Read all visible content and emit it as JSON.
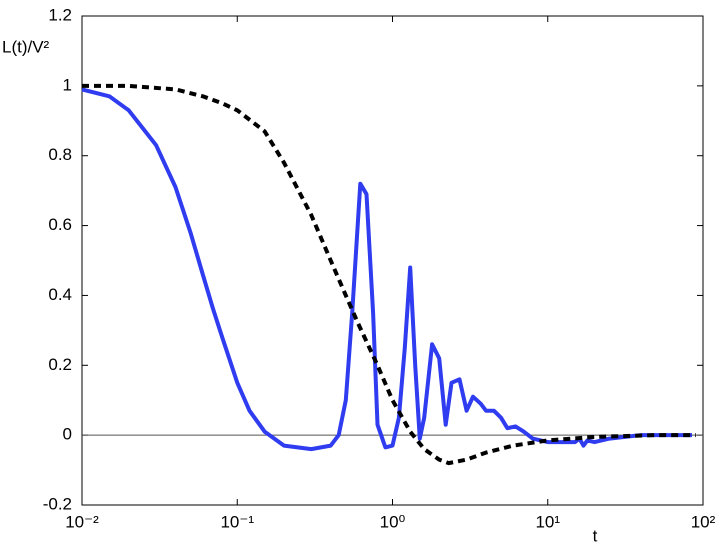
{
  "chart_data": {
    "type": "line",
    "xlabel": "t",
    "ylabel": "L(t)/V²",
    "xscale": "log",
    "xlim": [
      0.01,
      100
    ],
    "ylim": [
      -0.2,
      1.2
    ],
    "xticks": [
      {
        "value": 0.01,
        "label": "10⁻²"
      },
      {
        "value": 0.1,
        "label": "10⁻¹"
      },
      {
        "value": 1,
        "label": "10⁰"
      },
      {
        "value": 10,
        "label": "10¹"
      },
      {
        "value": 100,
        "label": "10²"
      }
    ],
    "yticks": [
      -0.2,
      0,
      0.2,
      0.4,
      0.6,
      0.8,
      1,
      1.2
    ],
    "hline": 0,
    "series": [
      {
        "color": "#2f3cf0",
        "dash": false,
        "x": [
          0.01,
          0.015,
          0.02,
          0.03,
          0.04,
          0.05,
          0.06,
          0.07,
          0.08,
          0.1,
          0.12,
          0.15,
          0.2,
          0.3,
          0.4,
          0.45,
          0.5,
          0.55,
          0.62,
          0.68,
          0.75,
          0.8,
          0.9,
          1.0,
          1.1,
          1.2,
          1.3,
          1.4,
          1.5,
          1.6,
          1.8,
          2.0,
          2.2,
          2.4,
          2.7,
          3.0,
          3.3,
          3.7,
          4.0,
          4.5,
          5.0,
          5.5,
          6.2,
          7,
          8,
          10,
          13,
          15,
          16,
          17,
          18,
          20,
          25,
          40,
          85
        ],
        "values": [
          0.99,
          0.97,
          0.93,
          0.83,
          0.71,
          0.58,
          0.46,
          0.36,
          0.28,
          0.15,
          0.07,
          0.01,
          -0.03,
          -0.04,
          -0.03,
          0.0,
          0.1,
          0.35,
          0.72,
          0.69,
          0.35,
          0.03,
          -0.035,
          -0.03,
          0.05,
          0.25,
          0.48,
          0.2,
          -0.01,
          0.05,
          0.26,
          0.22,
          0.03,
          0.15,
          0.16,
          0.07,
          0.11,
          0.09,
          0.07,
          0.07,
          0.05,
          0.02,
          0.025,
          0.01,
          -0.01,
          -0.02,
          -0.02,
          -0.02,
          -0.01,
          -0.03,
          -0.015,
          -0.02,
          -0.01,
          0.0,
          0.0
        ]
      },
      {
        "color": "#000000",
        "dash": true,
        "x": [
          0.01,
          0.02,
          0.04,
          0.06,
          0.08,
          0.1,
          0.15,
          0.2,
          0.3,
          0.4,
          0.5,
          0.6,
          0.8,
          1.0,
          1.3,
          1.6,
          2.0,
          2.3,
          3,
          4,
          6,
          10,
          20,
          50,
          90
        ],
        "values": [
          1.0,
          1.0,
          0.99,
          0.97,
          0.95,
          0.93,
          0.87,
          0.78,
          0.63,
          0.5,
          0.4,
          0.32,
          0.2,
          0.1,
          0.01,
          -0.04,
          -0.07,
          -0.08,
          -0.07,
          -0.05,
          -0.03,
          -0.015,
          -0.005,
          0,
          0
        ]
      }
    ]
  }
}
